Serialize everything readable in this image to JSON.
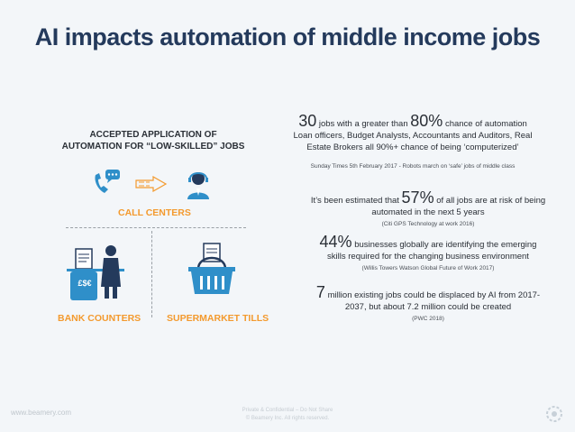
{
  "title": "AI impacts automation of middle income jobs",
  "left": {
    "heading_line1": "ACCEPTED APPLICATION OF",
    "heading_line2": "AUTOMATION FOR “LOW-SKILLED” JOBS",
    "call_centers": "CALL CENTERS",
    "bank_counters": "BANK COUNTERS",
    "supermarket_tills": "SUPERMARKET TILLS",
    "currency_sign": "£$€"
  },
  "right": {
    "stat1": {
      "num1": "30",
      "text1": "jobs with a greater than",
      "num2": "80%",
      "text2": "chance of automation",
      "line2": "Loan officers, Budget Analysts, Accountants and Auditors, Real",
      "line3": "Estate Brokers all 90%+ chance of being ‘computerized’",
      "source": "Sunday Times 5th February 2017 - Robots march on ‘safe’ jobs of middle class"
    },
    "stat2": {
      "prefix": "It’s been estimated that",
      "num": "57%",
      "suffix": "of all jobs are at risk of being",
      "line2": "automated in the next 5 years",
      "source": "(Citi GPS Technology at work 2016)"
    },
    "stat3": {
      "num": "44%",
      "text": "businesses globally are identifying the emerging",
      "line2": "skills required for the changing business environment",
      "source": "(Willis Towers Watson Global Future of Work 2017)"
    },
    "stat4": {
      "num": "7",
      "text": "million existing jobs could be displaced by AI from 2017-",
      "line2": "2037, but about 7.2 million could be created",
      "source": "(PWC 2018)"
    }
  },
  "footer": {
    "website": "www.beamery.com",
    "line1": "Private & Confidential – Do Not Share",
    "line2": "© Beamery Inc.  All rights reserved."
  },
  "colors": {
    "title": "#243a5c",
    "orange": "#f39a2e",
    "blue": "#2f8fc9",
    "text": "#2a2f36"
  }
}
